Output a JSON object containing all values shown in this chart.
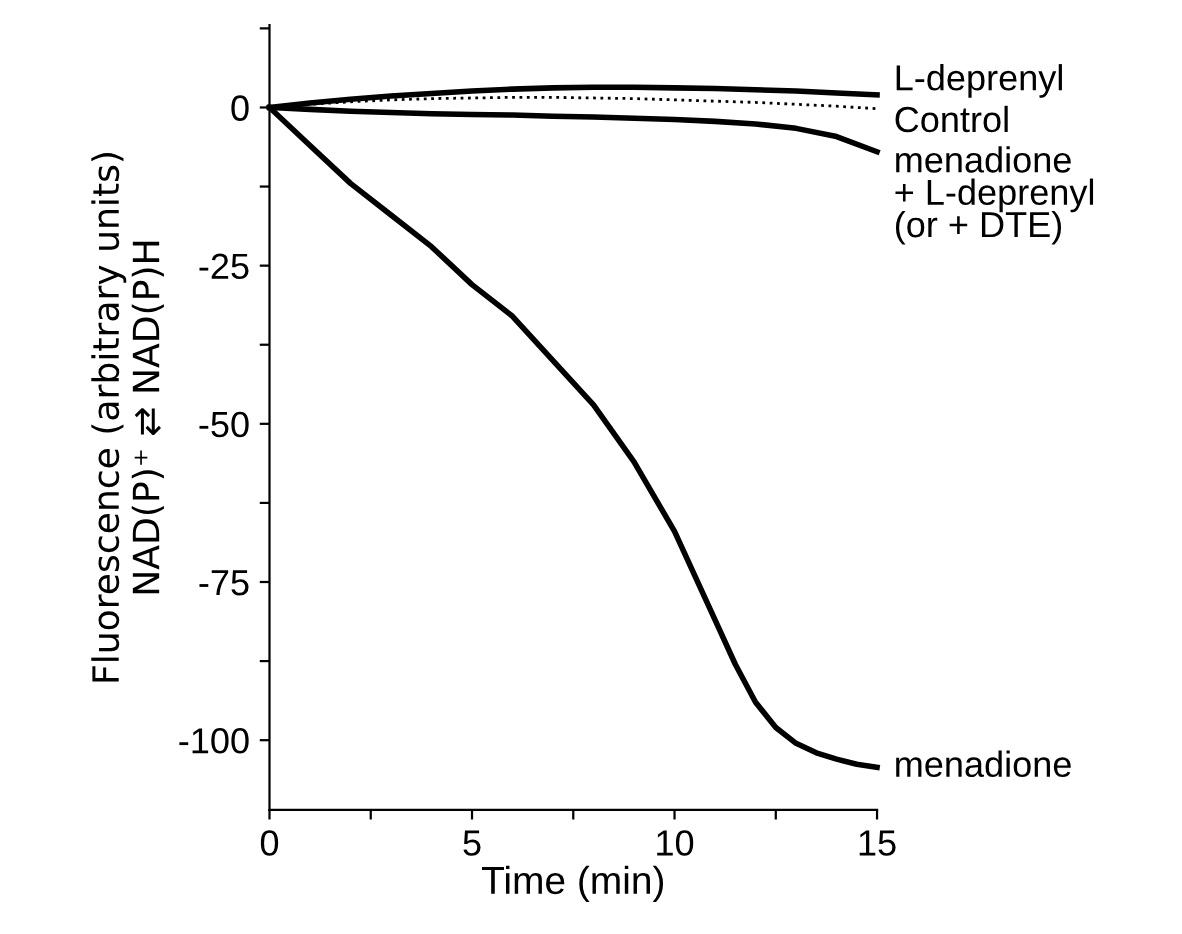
{
  "chart_data": {
    "type": "line",
    "xlabel": "Time (min)",
    "ylabel": "Fluorescence (arbitrary units)\nNAD(P)⁺ ⇄ NAD(P)H",
    "xlim": [
      0,
      15
    ],
    "ylim": [
      -111,
      13
    ],
    "xticks": [
      0,
      {
        "value": 2.5,
        "label": null
      },
      5,
      {
        "value": 7.5,
        "label": null
      },
      10,
      {
        "value": 12.5,
        "label": null
      },
      15
    ],
    "yticks": [
      -100,
      {
        "value": -87.5,
        "label": null
      },
      -75,
      {
        "value": -62.5,
        "label": null
      },
      -50,
      {
        "value": -37.5,
        "label": null
      },
      -25,
      {
        "value": -12.5,
        "label": null
      },
      0,
      {
        "value": 12.5,
        "label": null
      }
    ],
    "grid": false,
    "legend": false,
    "marker": "none",
    "series": [
      {
        "name": "L-deprenyl",
        "color": "#000000",
        "line_style": "solid",
        "x": [
          0,
          1,
          2,
          3,
          4,
          5,
          6,
          7,
          8,
          9,
          10,
          11,
          12,
          13,
          14,
          15
        ],
        "values": [
          0,
          0.7,
          1.3,
          1.8,
          2.2,
          2.6,
          2.9,
          3.1,
          3.2,
          3.2,
          3.1,
          3,
          2.8,
          2.6,
          2.3,
          2
        ]
      },
      {
        "name": "Control",
        "color": "#000000",
        "line_style": "dotted",
        "x": [
          0,
          1,
          2,
          3,
          4,
          5,
          6,
          7,
          8,
          9,
          10,
          11,
          12,
          13,
          14,
          15
        ],
        "values": [
          0,
          0.5,
          0.9,
          1.2,
          1.4,
          1.5,
          1.6,
          1.6,
          1.5,
          1.4,
          1.2,
          1,
          0.8,
          0.5,
          0.2,
          -0.2
        ]
      },
      {
        "name": "menadione\n+ L-deprenyl\n(or + DTE)",
        "color": "#000000",
        "line_style": "solid",
        "x": [
          0,
          1,
          2,
          3,
          4,
          5,
          6,
          7,
          8,
          9,
          10,
          11,
          12,
          13,
          14,
          15
        ],
        "values": [
          0,
          -0.3,
          -0.6,
          -0.8,
          -1,
          -1.1,
          -1.2,
          -1.4,
          -1.5,
          -1.7,
          -1.9,
          -2.2,
          -2.6,
          -3.3,
          -4.6,
          -7
        ]
      },
      {
        "name": "menadione",
        "color": "#000000",
        "line_style": "solid",
        "x": [
          0,
          1,
          2,
          3,
          4,
          5,
          6,
          7,
          8,
          9,
          10,
          10.5,
          11,
          11.5,
          12,
          12.5,
          13,
          13.5,
          14,
          14.5,
          15
        ],
        "values": [
          0,
          -6,
          -12,
          -17,
          -22,
          -28,
          -33,
          -40,
          -47,
          -56,
          -67,
          -74,
          -81,
          -88,
          -94,
          -98,
          -100.5,
          -102,
          -103,
          -103.8,
          -104.3
        ]
      }
    ]
  }
}
